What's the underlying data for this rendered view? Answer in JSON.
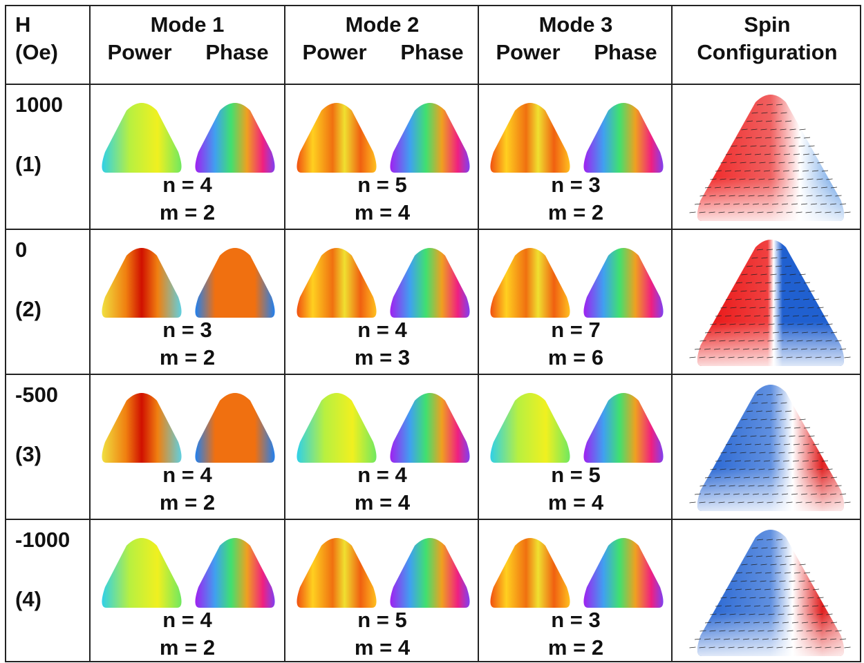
{
  "table": {
    "header": {
      "h": "H",
      "unit": "(Oe)",
      "modes": [
        {
          "title": "Mode 1",
          "power": "Power",
          "phase": "Phase"
        },
        {
          "title": "Mode 2",
          "power": "Power",
          "phase": "Phase"
        },
        {
          "title": "Mode 3",
          "power": "Power",
          "phase": "Phase"
        }
      ],
      "spin": [
        "Spin",
        "Configuration"
      ]
    },
    "rows": [
      {
        "field": "1000",
        "index": "(1)",
        "modes": [
          {
            "n": "n = 4",
            "m": "m = 2"
          },
          {
            "n": "n = 5",
            "m": "m = 4"
          },
          {
            "n": "n = 3",
            "m": "m = 2"
          }
        ]
      },
      {
        "field": "0",
        "index": "(2)",
        "modes": [
          {
            "n": "n = 3",
            "m": "m = 2"
          },
          {
            "n": "n = 4",
            "m": "m = 3"
          },
          {
            "n": "n = 7",
            "m": "m = 6"
          }
        ]
      },
      {
        "field": "-500",
        "index": "(3)",
        "modes": [
          {
            "n": "n = 4",
            "m": "m = 2"
          },
          {
            "n": "n = 4",
            "m": "m = 4"
          },
          {
            "n": "n = 5",
            "m": "m = 4"
          }
        ]
      },
      {
        "field": "-1000",
        "index": "(4)",
        "modes": [
          {
            "n": "n = 4",
            "m": "m = 2"
          },
          {
            "n": "n = 5",
            "m": "m = 4"
          },
          {
            "n": "n = 3",
            "m": "m = 2"
          }
        ]
      }
    ]
  }
}
